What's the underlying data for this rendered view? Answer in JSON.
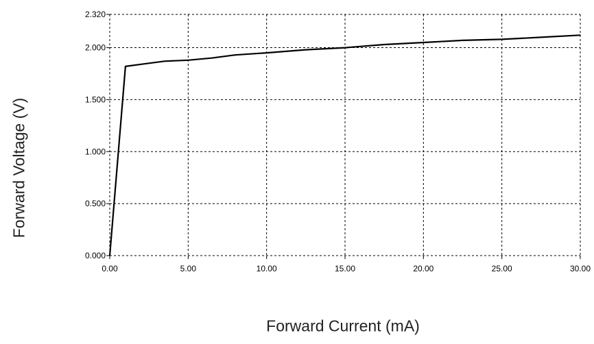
{
  "chart_data": {
    "type": "line",
    "title": "",
    "xlabel": "Forward Current (mA)",
    "ylabel": "Forward Voltage (V)",
    "xlim": [
      0,
      30
    ],
    "ylim": [
      0,
      2.32
    ],
    "x_ticks": [
      "0.00",
      "5.00",
      "10.00",
      "15.00",
      "20.00",
      "25.00",
      "30.00"
    ],
    "y_ticks": [
      "0.000",
      "0.500",
      "1.000",
      "1.500",
      "2.000",
      "2.320"
    ],
    "x_tick_values": [
      0,
      5,
      10,
      15,
      20,
      25,
      30
    ],
    "y_tick_values": [
      0,
      0.5,
      1.0,
      1.5,
      2.0,
      2.32
    ],
    "grid": true,
    "legend": "none",
    "series": [
      {
        "x": [
          0,
          1.0,
          2.0,
          3.5,
          5.0,
          6.5,
          8.0,
          10.0,
          12.5,
          15.0,
          17.5,
          20.0,
          22.5,
          25.0,
          27.5,
          30.0
        ],
        "y": [
          0.0,
          1.82,
          1.84,
          1.87,
          1.88,
          1.9,
          1.93,
          1.95,
          1.98,
          2.0,
          2.03,
          2.05,
          2.07,
          2.08,
          2.1,
          2.12
        ],
        "color": "#000000"
      }
    ]
  }
}
